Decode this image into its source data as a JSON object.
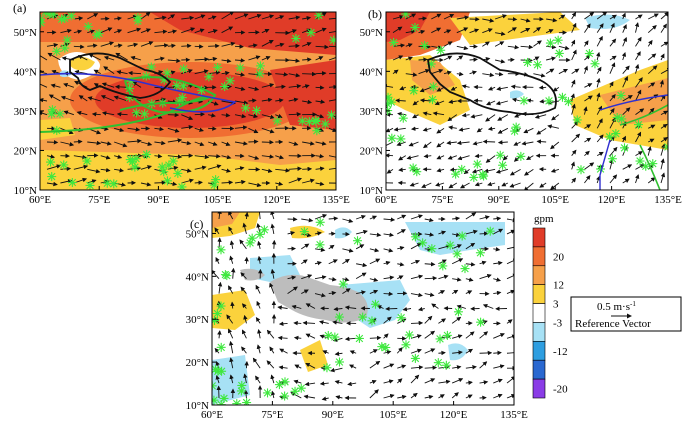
{
  "panels": {
    "a": {
      "label": "(a)"
    },
    "b": {
      "label": "(b)"
    },
    "c": {
      "label": "(c)"
    }
  },
  "axes": {
    "lon_ticks": [
      "60°E",
      "75°E",
      "90°E",
      "105°E",
      "120°E",
      "135°E"
    ],
    "lat_ticks": [
      "50°N",
      "40°N",
      "30°N",
      "20°N",
      "10°N"
    ]
  },
  "colorbar": {
    "unit": "gpm",
    "labels": [
      "20",
      "12",
      "3",
      "-3",
      "-12",
      "-20"
    ],
    "colors": [
      "#e03c28",
      "#f06e32",
      "#f6a04a",
      "#fbd23c",
      "#ffffff",
      "#a7e1f5",
      "#2e9ee0",
      "#2a68d0",
      "#8a3ce6"
    ]
  },
  "legend": {
    "speed": "0.5 m·s",
    "speed_sup": "-1",
    "label": "Reference Vector"
  },
  "colors": {
    "sig_marker": "#3ee83e",
    "contour_green": "#30c030",
    "contour_blue": "#3030d0",
    "plateau_gray": "#bdbdbd"
  }
}
